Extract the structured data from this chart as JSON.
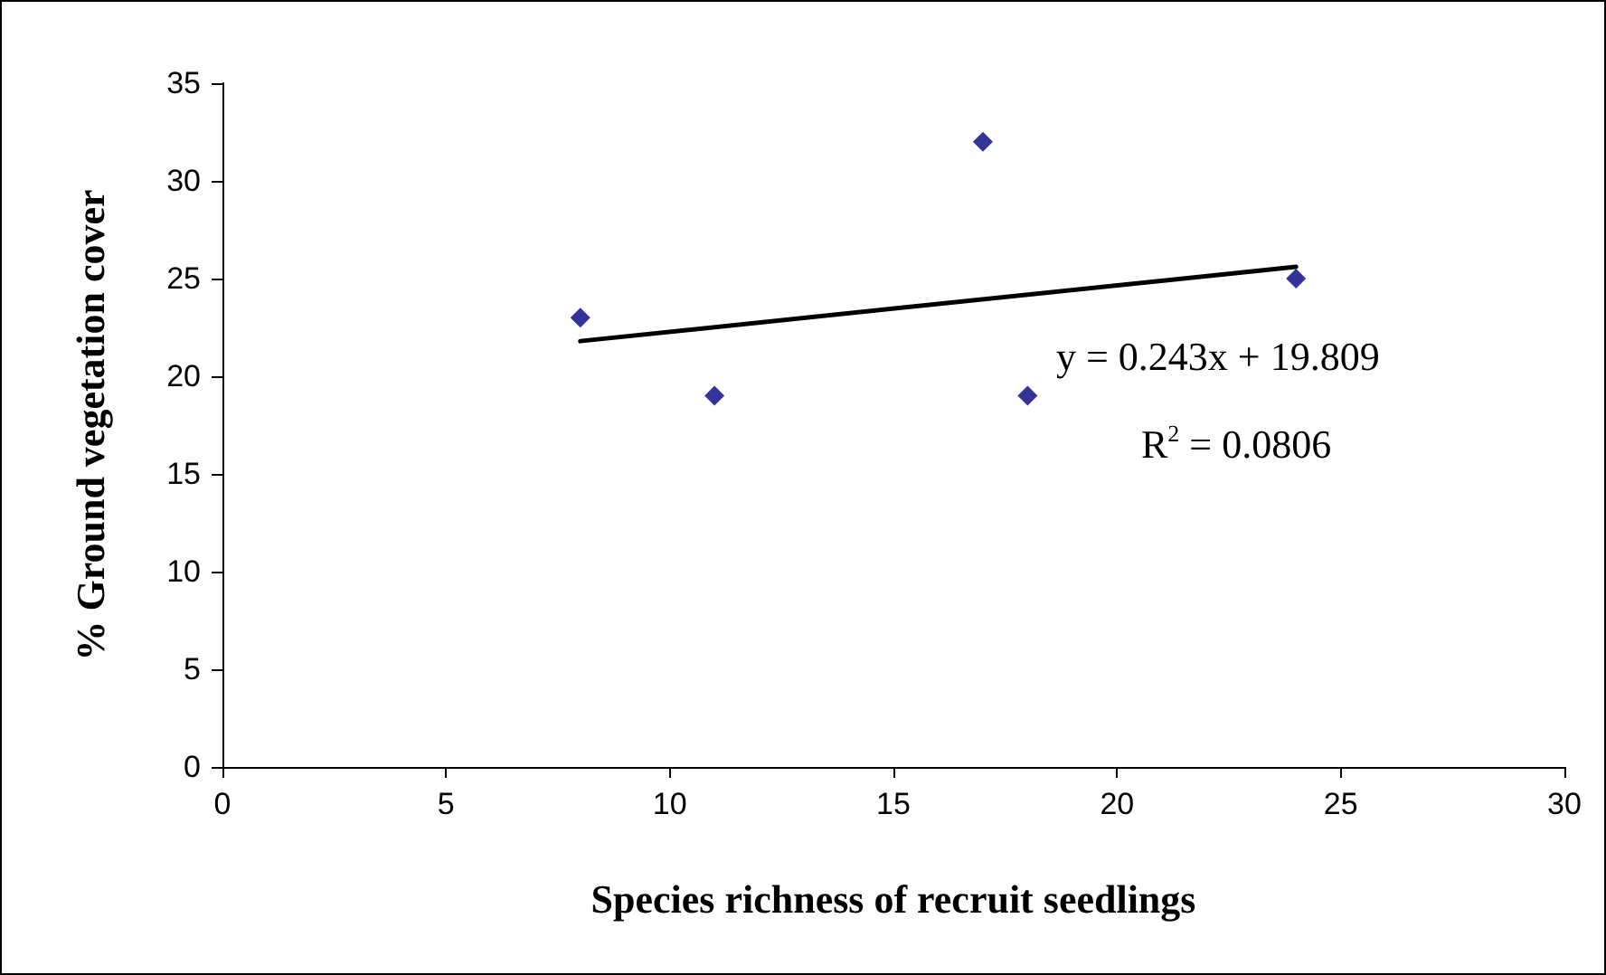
{
  "chart_data": {
    "type": "scatter",
    "xlabel": "Species richness of recruit seedlings",
    "ylabel": "% Ground vegetation cover",
    "xlim": [
      0,
      30
    ],
    "xticks": [
      0,
      5,
      10,
      15,
      20,
      25,
      30
    ],
    "ylim": [
      0,
      35
    ],
    "yticks": [
      0,
      5,
      10,
      15,
      20,
      25,
      30,
      35
    ],
    "grid": false,
    "series": [
      {
        "color": "#000080",
        "marker": "diamond",
        "x": [
          8,
          11,
          17,
          18,
          24
        ],
        "values": [
          23,
          19,
          32,
          19,
          25
        ]
      },
      {
        "type": "line",
        "color": "#000000",
        "marker": "none",
        "line_style": "solid",
        "x": [
          8,
          24
        ],
        "values": [
          21.8,
          25.6
        ]
      }
    ],
    "annotations": [
      "y = 0.243x + 19.809",
      "R$^{2}$ = 0.0806"
    ]
  }
}
